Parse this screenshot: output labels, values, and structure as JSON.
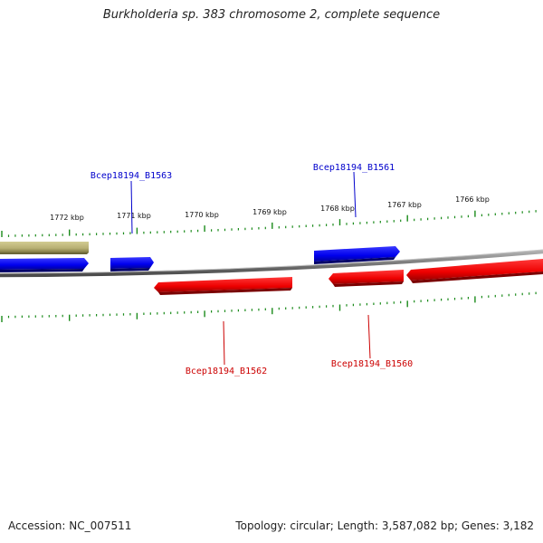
{
  "title": "Burkholderia sp. 383 chromosome 2, complete sequence",
  "footer": {
    "accession": "Accession: NC_007511",
    "summary": "Topology: circular; Length: 3,587,082 bp; Genes: 3,182"
  },
  "ruler": {
    "labels": [
      "1772 kbp",
      "1771 kbp",
      "1770 kbp",
      "1769 kbp",
      "1768 kbp",
      "1767 kbp",
      "1766 kbp"
    ]
  },
  "genes": [
    {
      "name": "Bcep18194_B1563",
      "strand": "forward",
      "color": "#0000cc"
    },
    {
      "name": "Bcep18194_B1561",
      "strand": "forward",
      "color": "#0000cc"
    },
    {
      "name": "Bcep18194_B1562",
      "strand": "reverse",
      "color": "#cc0000"
    },
    {
      "name": "Bcep18194_B1560",
      "strand": "reverse",
      "color": "#cc0000"
    }
  ],
  "colors": {
    "forward": "#0000ff",
    "reverse": "#ff0000",
    "other": "#b8b074",
    "backbone": "#808080",
    "ticks": "#1a8a1a"
  }
}
